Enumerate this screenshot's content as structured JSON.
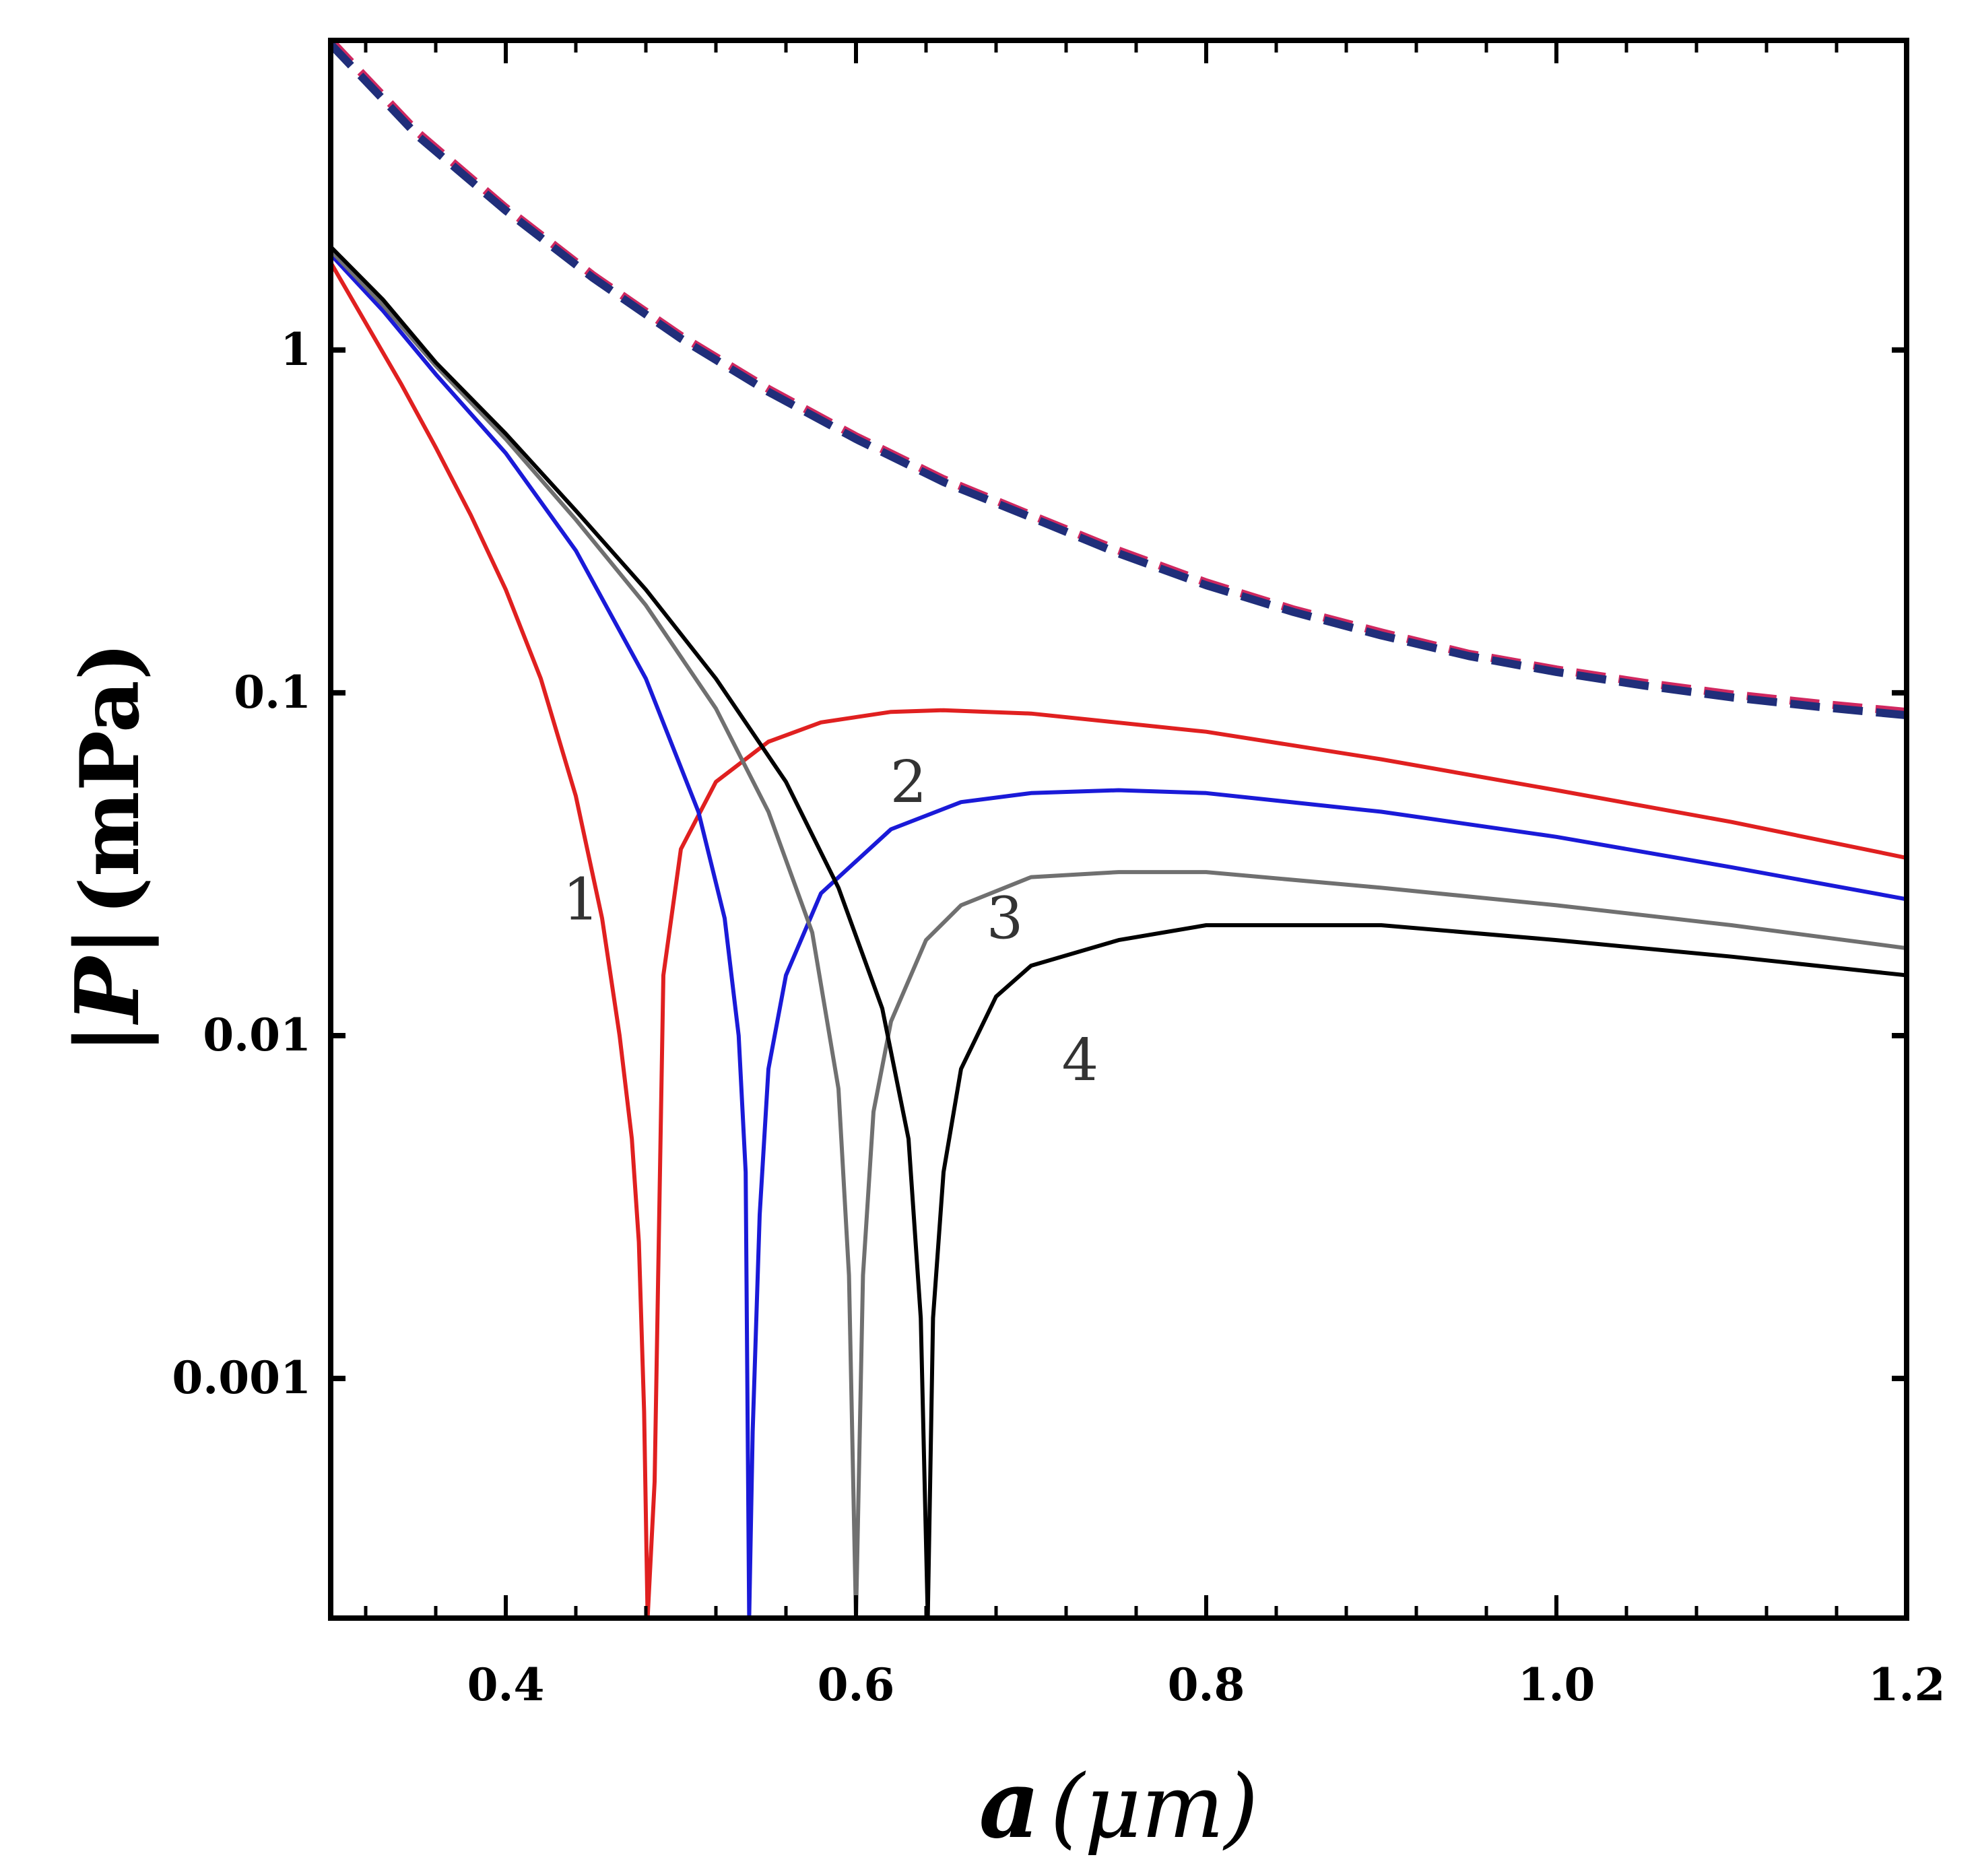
{
  "chart_data": {
    "type": "line",
    "title": "",
    "xlabel": "a (μm)",
    "ylabel": "|P| (mPa)",
    "xlabel_parts": {
      "var": "a",
      "unit": "(μm)"
    },
    "ylabel_parts": {
      "var": "|P|",
      "unit": "(mPa)"
    },
    "xlim": [
      0.3,
      1.2
    ],
    "ylim": [
      0.0002,
      8
    ],
    "yscale": "log",
    "grid": false,
    "x_ticks": [
      0.4,
      0.6,
      0.8,
      1.0,
      1.2
    ],
    "x_tick_labels": [
      "0.4",
      "0.6",
      "0.8",
      "1.0",
      "1.2"
    ],
    "y_ticks": [
      0.001,
      0.01,
      0.1,
      1
    ],
    "y_tick_labels": [
      "0.001",
      "0.01",
      "0.1",
      "1"
    ],
    "series": [
      {
        "name": "1",
        "color": "#e02020",
        "style": "solid",
        "x": [
          0.3,
          0.32,
          0.34,
          0.36,
          0.38,
          0.4,
          0.42,
          0.44,
          0.455,
          0.465,
          0.472,
          0.476,
          0.479,
          0.481,
          0.485,
          0.49,
          0.5,
          0.52,
          0.55,
          0.58,
          0.62,
          0.65,
          0.7,
          0.8,
          0.9,
          1.0,
          1.1,
          1.2
        ],
        "y": [
          1.8,
          1.2,
          0.8,
          0.52,
          0.33,
          0.2,
          0.11,
          0.05,
          0.022,
          0.01,
          0.005,
          0.0025,
          0.0008,
          0.0002,
          0.0005,
          0.015,
          0.035,
          0.055,
          0.072,
          0.082,
          0.088,
          0.089,
          0.087,
          0.077,
          0.064,
          0.052,
          0.042,
          0.033
        ]
      },
      {
        "name": "2",
        "color": "#1a1ad8",
        "style": "solid",
        "x": [
          0.3,
          0.33,
          0.36,
          0.4,
          0.44,
          0.48,
          0.51,
          0.525,
          0.533,
          0.537,
          0.539,
          0.541,
          0.545,
          0.55,
          0.56,
          0.58,
          0.62,
          0.66,
          0.7,
          0.75,
          0.8,
          0.9,
          1.0,
          1.1,
          1.2
        ],
        "y": [
          1.9,
          1.3,
          0.85,
          0.5,
          0.26,
          0.11,
          0.045,
          0.022,
          0.01,
          0.004,
          0.0002,
          0.0007,
          0.003,
          0.008,
          0.015,
          0.026,
          0.04,
          0.048,
          0.051,
          0.052,
          0.051,
          0.045,
          0.038,
          0.031,
          0.025
        ]
      },
      {
        "name": "3",
        "color": "#707070",
        "style": "solid",
        "x": [
          0.3,
          0.33,
          0.36,
          0.4,
          0.44,
          0.48,
          0.52,
          0.55,
          0.575,
          0.59,
          0.596,
          0.6,
          0.604,
          0.61,
          0.62,
          0.64,
          0.66,
          0.7,
          0.75,
          0.8,
          0.9,
          1.0,
          1.1,
          1.2
        ],
        "y": [
          1.95,
          1.35,
          0.9,
          0.55,
          0.32,
          0.18,
          0.09,
          0.045,
          0.02,
          0.007,
          0.002,
          0.0002,
          0.002,
          0.006,
          0.011,
          0.019,
          0.024,
          0.029,
          0.03,
          0.03,
          0.027,
          0.024,
          0.021,
          0.018
        ]
      },
      {
        "name": "4",
        "color": "#000000",
        "style": "solid",
        "x": [
          0.3,
          0.33,
          0.36,
          0.4,
          0.44,
          0.48,
          0.52,
          0.56,
          0.59,
          0.615,
          0.63,
          0.637,
          0.641,
          0.644,
          0.65,
          0.66,
          0.68,
          0.7,
          0.75,
          0.8,
          0.9,
          1.0,
          1.1,
          1.2
        ],
        "y": [
          2.0,
          1.4,
          0.92,
          0.57,
          0.34,
          0.2,
          0.11,
          0.055,
          0.027,
          0.012,
          0.005,
          0.0015,
          0.0002,
          0.0015,
          0.004,
          0.008,
          0.013,
          0.016,
          0.019,
          0.021,
          0.021,
          0.019,
          0.017,
          0.015
        ]
      },
      {
        "name": "dashed-red",
        "color": "#d02860",
        "style": "dashed",
        "x": [
          0.3,
          0.35,
          0.4,
          0.45,
          0.5,
          0.55,
          0.6,
          0.65,
          0.7,
          0.75,
          0.8,
          0.85,
          0.9,
          0.95,
          1.0,
          1.05,
          1.1,
          1.15,
          1.2
        ],
        "y": [
          8.0,
          4.3,
          2.6,
          1.65,
          1.1,
          0.77,
          0.56,
          0.42,
          0.33,
          0.26,
          0.21,
          0.175,
          0.15,
          0.13,
          0.117,
          0.107,
          0.099,
          0.093,
          0.088
        ]
      },
      {
        "name": "dashed-blue",
        "color": "#202e7a",
        "style": "dashed",
        "x": [
          0.3,
          0.35,
          0.4,
          0.45,
          0.5,
          0.55,
          0.6,
          0.65,
          0.7,
          0.75,
          0.8,
          0.85,
          0.9,
          0.95,
          1.0,
          1.05,
          1.1,
          1.15,
          1.2
        ],
        "y": [
          7.8,
          4.2,
          2.55,
          1.62,
          1.08,
          0.755,
          0.55,
          0.412,
          0.325,
          0.255,
          0.206,
          0.172,
          0.147,
          0.128,
          0.115,
          0.105,
          0.097,
          0.091,
          0.086
        ]
      }
    ],
    "annotations": [
      {
        "text": "1",
        "x": 0.443,
        "y": 0.025
      },
      {
        "text": "2",
        "x": 0.63,
        "y": 0.055
      },
      {
        "text": "3",
        "x": 0.685,
        "y": 0.022
      },
      {
        "text": "4",
        "x": 0.728,
        "y": 0.0085
      }
    ]
  }
}
